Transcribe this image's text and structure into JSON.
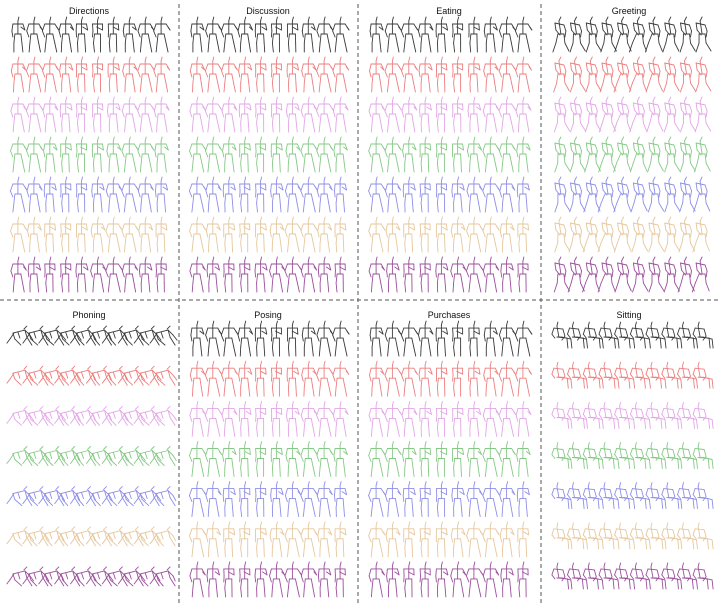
{
  "panels": [
    {
      "title": "Directions",
      "style": "stand"
    },
    {
      "title": "Discussion",
      "style": "stand"
    },
    {
      "title": "Eating",
      "style": "stand"
    },
    {
      "title": "Greeting",
      "style": "walk"
    },
    {
      "title": "Phoning",
      "style": "crouch"
    },
    {
      "title": "Posing",
      "style": "stand"
    },
    {
      "title": "Purchases",
      "style": "stand"
    },
    {
      "title": "Sitting",
      "style": "sit"
    }
  ],
  "row_colors": [
    "#3a3a3a",
    "#ec7f7f",
    "#e2a6e6",
    "#86c986",
    "#8f8fe6",
    "#e6c79d",
    "#9b4f9b"
  ],
  "frames_per_row": 10
}
